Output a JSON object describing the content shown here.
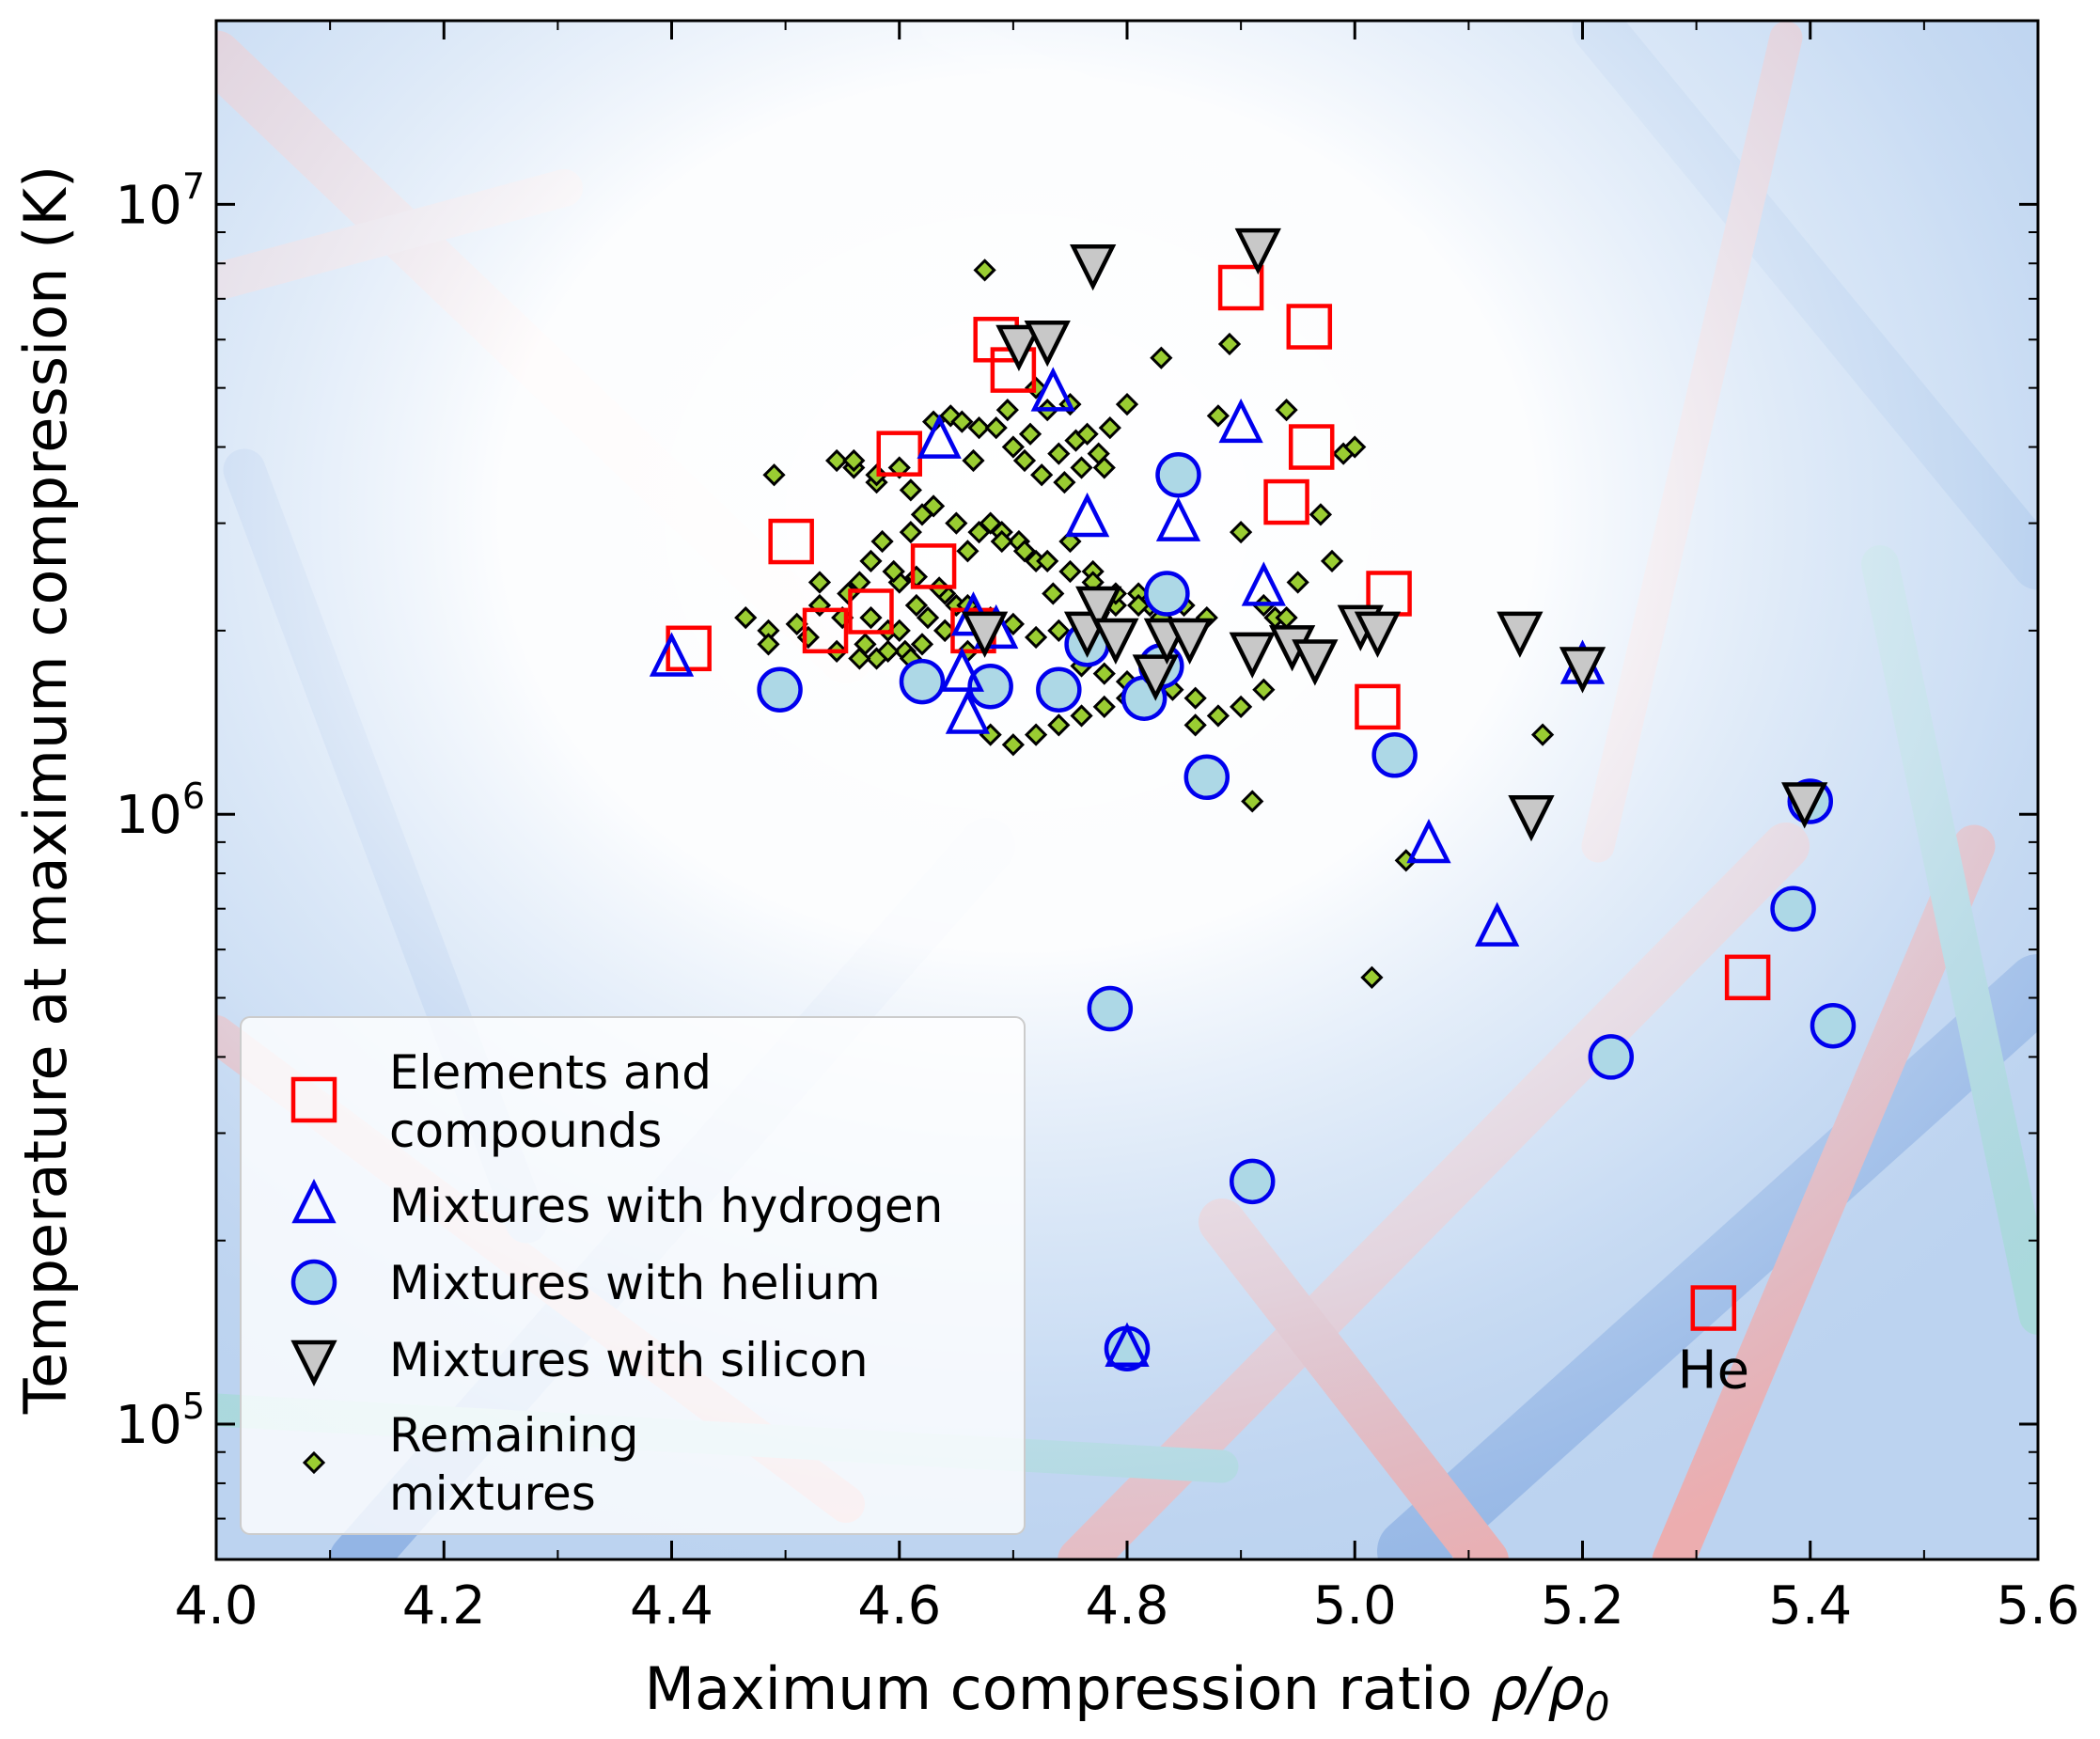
{
  "chart_data": {
    "type": "scatter",
    "title": "",
    "xlabel": "Maximum compression ratio",
    "xlabel_math": "ρ/ρ",
    "xlabel_sub": "0",
    "ylabel": "Temperature at maximum compression (K)",
    "xlim": [
      4.0,
      5.6
    ],
    "ylim": [
      60000,
      20000000
    ],
    "yscale": "log",
    "x_ticks": [
      "4.0",
      "4.2",
      "4.4",
      "4.6",
      "4.8",
      "5.0",
      "5.2",
      "5.4",
      "5.6"
    ],
    "y_ticks": [
      {
        "base": "10",
        "exp": "5",
        "value": 100000
      },
      {
        "base": "10",
        "exp": "6",
        "value": 1000000
      },
      {
        "base": "10",
        "exp": "7",
        "value": 10000000
      }
    ],
    "legend_position": "lower-left",
    "annotations": [
      {
        "text": "He",
        "x": 5.315,
        "y": 123000
      }
    ],
    "series": [
      {
        "name": "Elements and compounds",
        "legend": [
          "Elements and",
          "compounds"
        ],
        "marker": "square",
        "color": "#ff0000",
        "x": [
          4.415,
          4.505,
          4.535,
          4.575,
          4.6,
          4.63,
          4.665,
          4.685,
          4.7,
          4.9,
          4.94,
          4.96,
          4.962,
          5.02,
          5.03,
          5.345,
          5.315
        ],
        "y": [
          1870000,
          2800000,
          2000000,
          2150000,
          3900000,
          2550000,
          2000000,
          6000000,
          5350000,
          7300000,
          3250000,
          6300000,
          4000000,
          1500000,
          2300000,
          540000,
          155000
        ]
      },
      {
        "name": "Mixtures with hydrogen",
        "legend": [
          "Mixtures with hydrogen"
        ],
        "marker": "triangle-up",
        "color": "#0000ee",
        "x": [
          4.4,
          4.635,
          4.655,
          4.66,
          4.665,
          4.685,
          4.735,
          4.765,
          4.845,
          4.9,
          4.92,
          5.065,
          5.125,
          5.2,
          4.8
        ],
        "y": [
          1800000,
          4100000,
          1700000,
          1450000,
          2100000,
          2000000,
          4900000,
          3050000,
          3000000,
          4350000,
          2350000,
          890000,
          650000,
          1750000,
          133000
        ]
      },
      {
        "name": "Mixtures with helium",
        "legend": [
          "Mixtures with helium"
        ],
        "marker": "circle",
        "color": "#0000ee",
        "fill": "#add8e6",
        "x": [
          4.495,
          4.62,
          4.68,
          4.74,
          4.765,
          4.815,
          4.83,
          4.835,
          4.845,
          4.87,
          4.91,
          5.035,
          5.225,
          5.385,
          5.4,
          5.42,
          4.785,
          4.8
        ],
        "y": [
          1600000,
          1650000,
          1620000,
          1600000,
          1900000,
          1550000,
          1750000,
          2300000,
          3600000,
          1150000,
          250000,
          1250000,
          400000,
          700000,
          1050000,
          450000,
          480000,
          133000
        ]
      },
      {
        "name": "Mixtures with silicon",
        "legend": [
          "Mixtures with silicon"
        ],
        "marker": "triangle-down",
        "color": "#000000",
        "fill": "#c8c8c8",
        "x": [
          4.675,
          4.705,
          4.73,
          4.77,
          4.765,
          4.775,
          4.79,
          4.825,
          4.835,
          4.855,
          4.91,
          4.915,
          4.945,
          4.965,
          5.005,
          5.02,
          5.145,
          5.155,
          5.2,
          5.395
        ],
        "y": [
          2000000,
          5900000,
          6000000,
          8000000,
          2000000,
          2200000,
          1950000,
          1700000,
          1950000,
          1950000,
          1850000,
          8500000,
          1900000,
          1800000,
          2050000,
          2000000,
          2000000,
          1000000,
          1750000,
          1050000
        ]
      },
      {
        "name": "Remaining mixtures",
        "legend": [
          "Remaining",
          "mixtures"
        ],
        "marker": "diamond",
        "color": "#000000",
        "fill": "#9acd32",
        "x": [
          4.465,
          4.485,
          4.49,
          4.51,
          4.52,
          4.53,
          4.545,
          4.555,
          4.56,
          4.565,
          4.57,
          4.575,
          4.58,
          4.585,
          4.59,
          4.595,
          4.6,
          4.605,
          4.61,
          4.615,
          4.62,
          4.625,
          4.63,
          4.64,
          4.645,
          4.65,
          4.655,
          4.66,
          4.665,
          4.67,
          4.675,
          4.68,
          4.685,
          4.69,
          4.695,
          4.7,
          4.705,
          4.71,
          4.715,
          4.72,
          4.725,
          4.73,
          4.735,
          4.74,
          4.745,
          4.75,
          4.755,
          4.76,
          4.765,
          4.77,
          4.775,
          4.78,
          4.785,
          4.79,
          4.8,
          4.81,
          4.82,
          4.83,
          4.84,
          4.85,
          4.86,
          4.87,
          4.88,
          4.89,
          4.9,
          4.91,
          4.92,
          4.93,
          4.94,
          4.95,
          4.97,
          4.98,
          4.99,
          5.0,
          5.015,
          5.045,
          5.165,
          4.485,
          4.53,
          4.55,
          4.58,
          4.6,
          4.62,
          4.64,
          4.66,
          4.68,
          4.7,
          4.72,
          4.74,
          4.76,
          4.78,
          4.8,
          4.82,
          4.84,
          4.86,
          4.88,
          4.9,
          4.92,
          4.94,
          4.56,
          4.58,
          4.61,
          4.63,
          4.65,
          4.67,
          4.69,
          4.71,
          4.73,
          4.75,
          4.77,
          4.79,
          4.81,
          4.83,
          4.68,
          4.7,
          4.72,
          4.74,
          4.76,
          4.78,
          4.8,
          4.6,
          4.64,
          4.66,
          4.575,
          4.595,
          4.615,
          4.635,
          4.545,
          4.565,
          4.59,
          4.61,
          4.72,
          4.75
        ],
        "y": [
          2100000,
          2000000,
          3600000,
          2050000,
          1950000,
          2200000,
          3800000,
          2300000,
          3700000,
          2400000,
          1900000,
          2100000,
          3500000,
          2800000,
          2000000,
          2500000,
          3700000,
          1850000,
          2900000,
          2200000,
          3100000,
          2100000,
          4400000,
          2000000,
          4500000,
          2200000,
          4400000,
          2700000,
          3800000,
          4300000,
          7800000,
          3000000,
          4300000,
          2900000,
          4600000,
          4000000,
          2800000,
          3800000,
          4200000,
          2600000,
          3600000,
          4600000,
          2300000,
          3900000,
          3500000,
          2800000,
          4100000,
          3700000,
          4200000,
          2500000,
          3900000,
          3700000,
          4300000,
          2200000,
          4700000,
          2300000,
          2200000,
          5600000,
          2300000,
          2200000,
          1400000,
          2100000,
          1450000,
          5900000,
          2900000,
          1050000,
          2200000,
          2100000,
          4600000,
          2400000,
          3100000,
          2600000,
          3900000,
          4000000,
          540000,
          840000,
          1350000,
          1900000,
          2400000,
          2100000,
          1800000,
          2000000,
          1900000,
          2000000,
          1850000,
          2100000,
          2050000,
          1950000,
          2000000,
          1750000,
          1700000,
          1650000,
          1800000,
          1600000,
          1550000,
          4500000,
          1500000,
          1600000,
          2100000,
          3800000,
          3600000,
          3400000,
          3200000,
          3000000,
          2900000,
          2800000,
          2700000,
          2600000,
          2500000,
          2400000,
          2300000,
          2200000,
          2100000,
          1350000,
          1300000,
          1350000,
          1400000,
          1450000,
          1500000,
          1550000,
          2400000,
          2300000,
          2200000,
          2600000,
          2500000,
          2450000,
          2350000,
          1850000,
          1800000,
          1850000,
          1800000,
          5000000,
          4700000
        ]
      }
    ]
  }
}
